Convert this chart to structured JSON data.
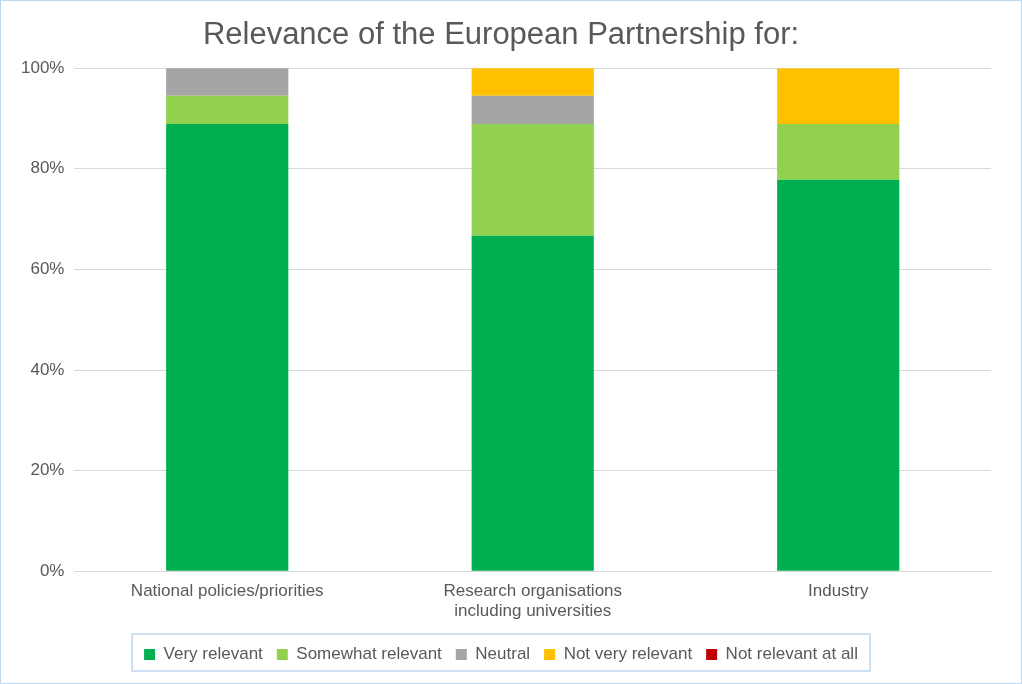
{
  "chart_data": {
    "type": "bar",
    "title": "Relevance of the European Partnership for:",
    "categories": [
      "National policies/priorities",
      "Research organisations\nincluding universities",
      "Industry"
    ],
    "stacked": true,
    "series": [
      {
        "name": "Very relevant",
        "color": "#00b050",
        "values": [
          88.9,
          66.7,
          77.8
        ]
      },
      {
        "name": "Somewhat relevant",
        "color": "#92d050",
        "values": [
          5.6,
          22.2,
          11.1
        ]
      },
      {
        "name": "Neutral",
        "color": "#a5a5a5",
        "values": [
          5.6,
          5.6,
          0
        ]
      },
      {
        "name": "Not very relevant",
        "color": "#ffc000",
        "values": [
          0,
          5.6,
          11.1
        ]
      },
      {
        "name": "Not relevant at all",
        "color": "#c00000",
        "values": [
          0,
          0,
          0
        ]
      }
    ],
    "ylim": [
      0,
      100
    ],
    "yticks": [
      {
        "value": 0,
        "label": "0%"
      },
      {
        "value": 20,
        "label": "20%"
      },
      {
        "value": 40,
        "label": "40%"
      },
      {
        "value": 60,
        "label": "60%"
      },
      {
        "value": 80,
        "label": "80%"
      },
      {
        "value": 100,
        "label": "100%"
      }
    ],
    "grid": "y",
    "legend": "bottom"
  }
}
